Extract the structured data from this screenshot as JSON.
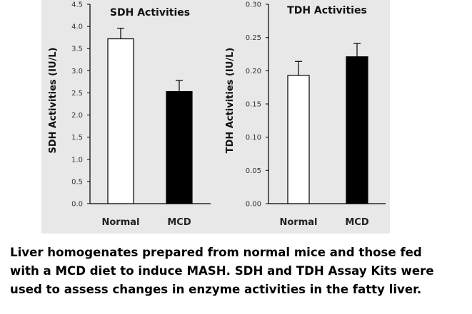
{
  "chart_data": [
    {
      "type": "bar",
      "title": "SDH Activities",
      "ylabel": "SDH Activities (IU/L)",
      "xlabel": "",
      "categories": [
        "Normal",
        "MCD"
      ],
      "values": [
        3.72,
        2.53
      ],
      "errors": [
        0.24,
        0.25
      ],
      "bar_colors": [
        "#ffffff",
        "#000000"
      ],
      "ylim": [
        0,
        4.5
      ],
      "yticks": [
        "0.0",
        "0.5",
        "1.0",
        "1.5",
        "2.0",
        "2.5",
        "3.0",
        "3.5",
        "4.0",
        "4.5"
      ],
      "grid": false
    },
    {
      "type": "bar",
      "title": "TDH Activities",
      "ylabel": "TDH Activities (IU/L)",
      "xlabel": "",
      "categories": [
        "Normal",
        "MCD"
      ],
      "values": [
        0.193,
        0.221
      ],
      "errors": [
        0.021,
        0.02
      ],
      "bar_colors": [
        "#ffffff",
        "#000000"
      ],
      "ylim": [
        0,
        0.3
      ],
      "yticks": [
        "0.00",
        "0.05",
        "0.10",
        "0.15",
        "0.20",
        "0.25",
        "0.30"
      ],
      "grid": false
    }
  ],
  "panel_background": "#e8e8e8",
  "caption": [
    "Liver homogenates prepared from normal mice and those fed",
    "with a MCD diet to induce MASH. SDH and TDH Assay Kits were",
    "used to assess changes in enzyme activities in the fatty liver."
  ]
}
